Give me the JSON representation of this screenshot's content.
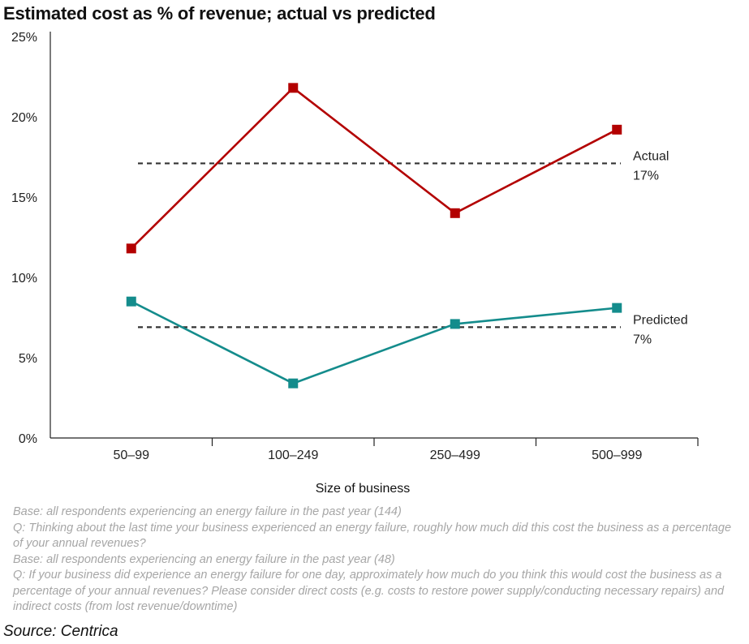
{
  "chart_data": {
    "type": "line",
    "title": "Estimated cost as % of revenue; actual vs predicted",
    "xlabel": "Size of business",
    "ylabel": "",
    "ylim": [
      0,
      25
    ],
    "yticks": [
      "0%",
      "5%",
      "10%",
      "15%",
      "20%",
      "25%"
    ],
    "ytick_values": [
      0,
      5,
      10,
      15,
      20,
      25
    ],
    "categories": [
      "50–99",
      "100–249",
      "250–499",
      "500–999"
    ],
    "grid": false,
    "series": [
      {
        "name": "Actual",
        "color": "#b30000",
        "values": [
          11.8,
          21.8,
          14.0,
          19.2
        ]
      },
      {
        "name": "Predicted",
        "color": "#148c8c",
        "values": [
          8.5,
          3.4,
          7.1,
          8.1
        ]
      }
    ],
    "averages": [
      {
        "label": "Actual",
        "value_label": "17%",
        "value": 17.1
      },
      {
        "label": "Predicted",
        "value_label": "7%",
        "value": 6.9
      }
    ]
  },
  "notes": [
    "Base: all respondents experiencing an energy failure in the past year (144)",
    "Q: Thinking about the last time your business experienced an energy failure, roughly how much did this cost the business as a percentage of your annual revenues?",
    "Base: all respondents experiencing an energy failure in the past year (48)",
    "Q: If your business did experience an energy failure for one day, approximately how much do you think this would cost the business as a percentage of your annual revenues? Please consider direct costs (e.g. costs to restore power supply/conducting necessary repairs) and indirect costs (from lost revenue/downtime)"
  ],
  "source": "Source: Centrica"
}
